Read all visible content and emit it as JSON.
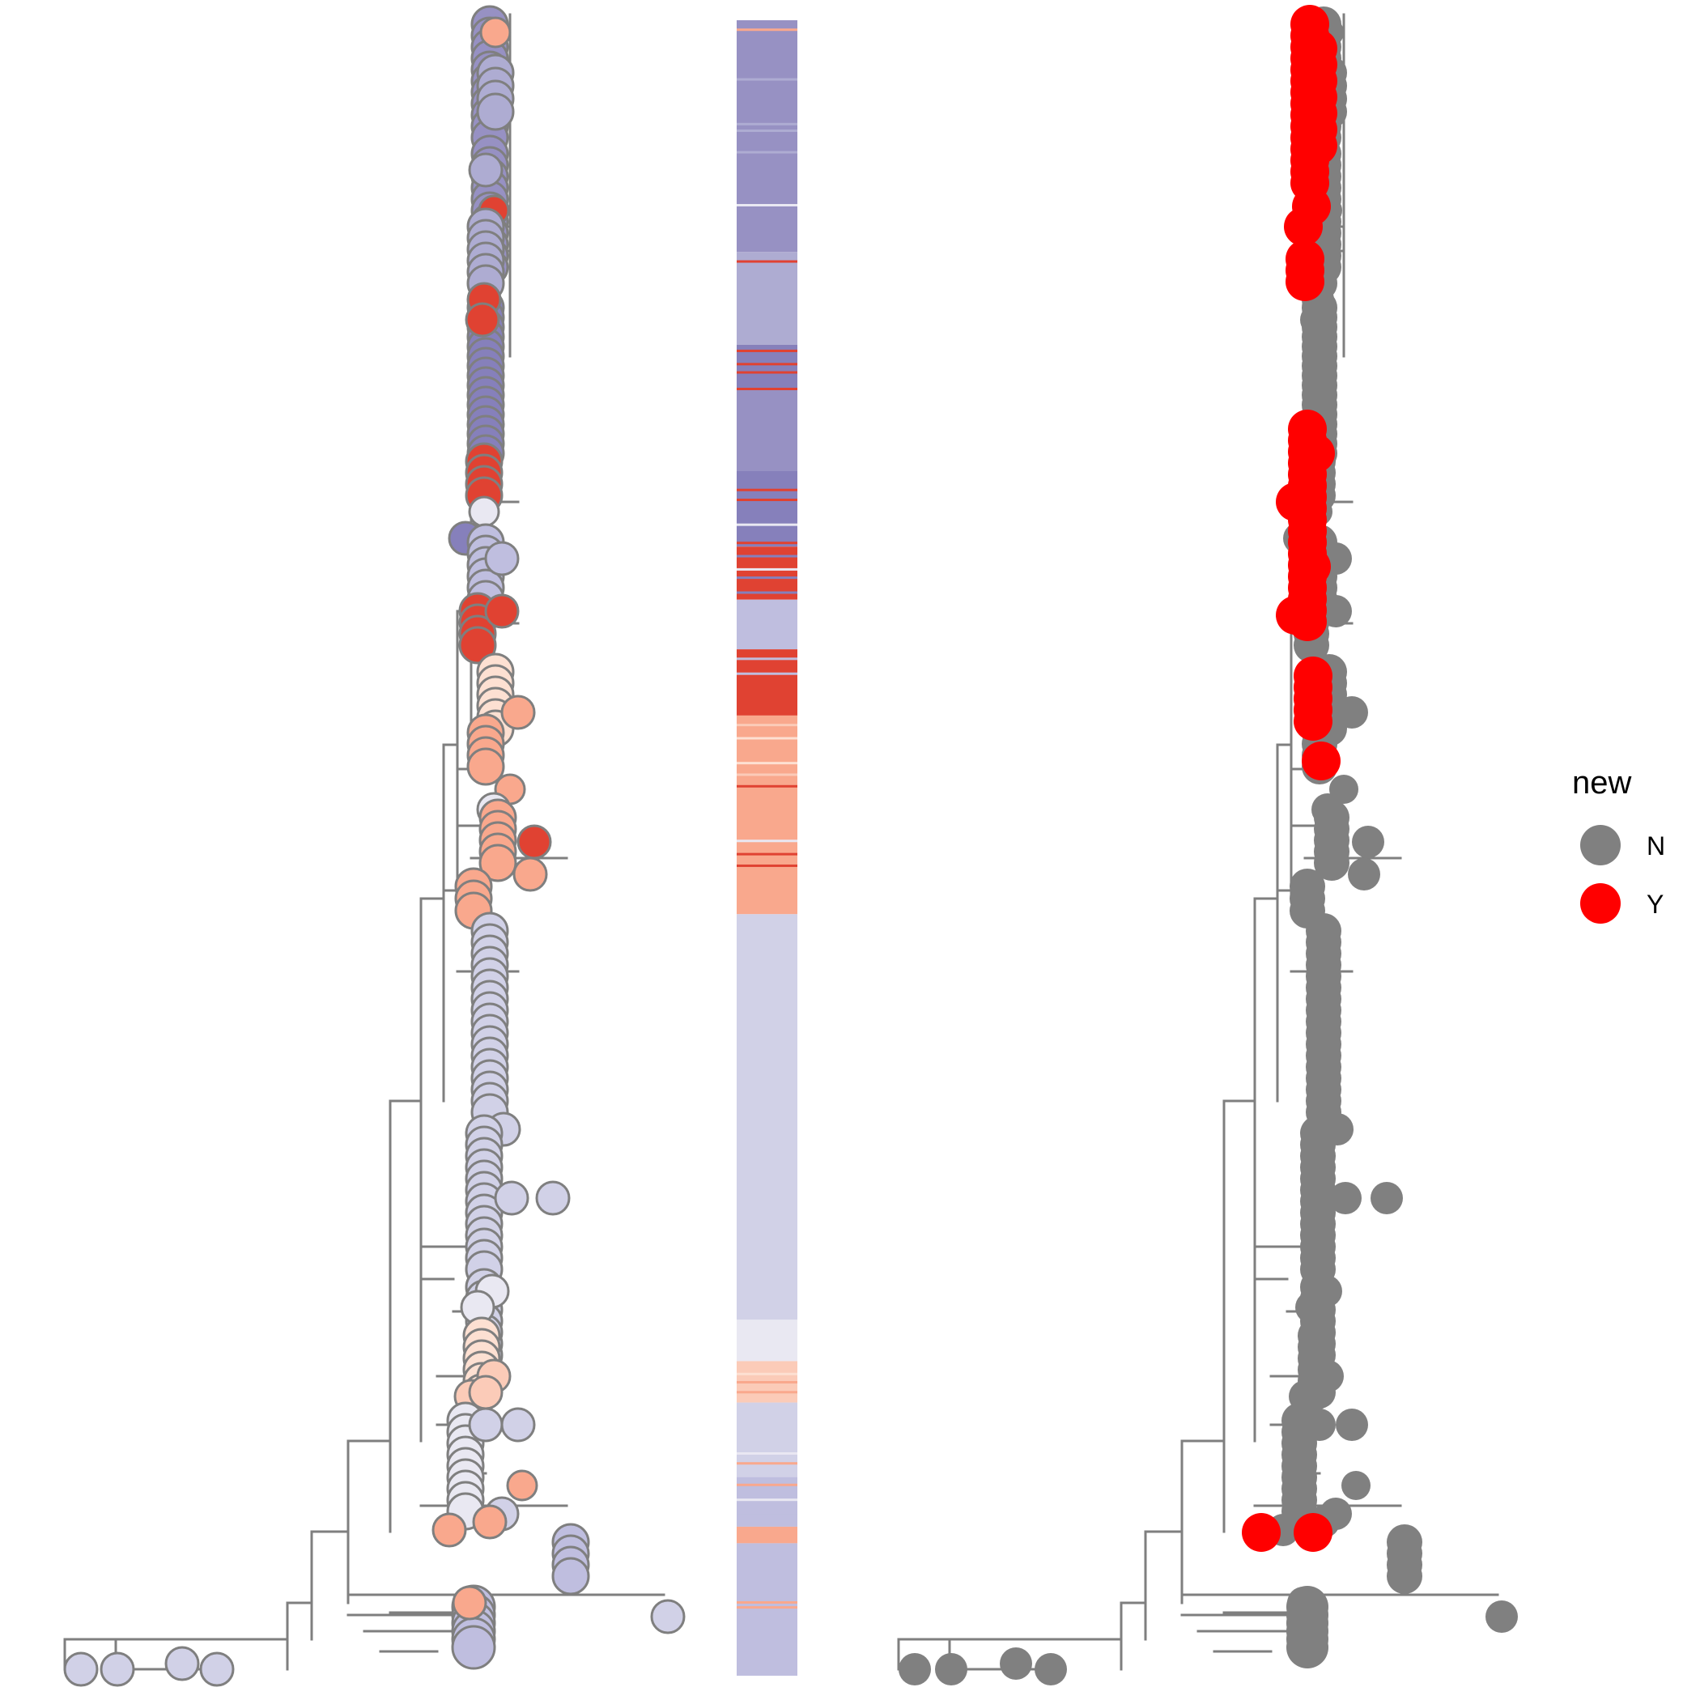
{
  "colors": {
    "branch": "#7f7f7f",
    "tip_outline": "#7f7f7f",
    "dark_purple": "#8680bb",
    "purple": "#9791c3",
    "light_purple": "#aeacd2",
    "lavender": "#bfbedf",
    "pale_lavender": "#d1d1e7",
    "near_white": "#e9e8f2",
    "red": "#e04232",
    "salmon": "#f9a88d",
    "light_salmon": "#fbcbb8",
    "pale_peach": "#fde0d2",
    "new_N": "#808080",
    "new_Y": "#ff0000"
  },
  "legend": {
    "title": "new",
    "items": [
      {
        "label": "N",
        "color_key": "new_N"
      },
      {
        "label": "Y",
        "color_key": "new_Y"
      }
    ]
  },
  "heatmap_bar": {
    "blocks": [
      {
        "from": 0.0,
        "to": 0.14,
        "color_key": "purple"
      },
      {
        "from": 0.14,
        "to": 0.196,
        "color_key": "light_purple"
      },
      {
        "from": 0.196,
        "to": 0.222,
        "color_key": "dark_purple"
      },
      {
        "from": 0.222,
        "to": 0.272,
        "color_key": "purple"
      },
      {
        "from": 0.272,
        "to": 0.318,
        "color_key": "dark_purple"
      },
      {
        "from": 0.318,
        "to": 0.35,
        "color_key": "red"
      },
      {
        "from": 0.35,
        "to": 0.38,
        "color_key": "lavender"
      },
      {
        "from": 0.38,
        "to": 0.42,
        "color_key": "red"
      },
      {
        "from": 0.42,
        "to": 0.54,
        "color_key": "salmon"
      },
      {
        "from": 0.54,
        "to": 0.785,
        "color_key": "pale_lavender"
      },
      {
        "from": 0.785,
        "to": 0.81,
        "color_key": "near_white"
      },
      {
        "from": 0.81,
        "to": 0.835,
        "color_key": "light_salmon"
      },
      {
        "from": 0.835,
        "to": 0.88,
        "color_key": "pale_lavender"
      },
      {
        "from": 0.88,
        "to": 0.91,
        "color_key": "lavender"
      },
      {
        "from": 0.91,
        "to": 0.92,
        "color_key": "salmon"
      },
      {
        "from": 0.92,
        "to": 1.0,
        "color_key": "lavender"
      }
    ]
  }
}
